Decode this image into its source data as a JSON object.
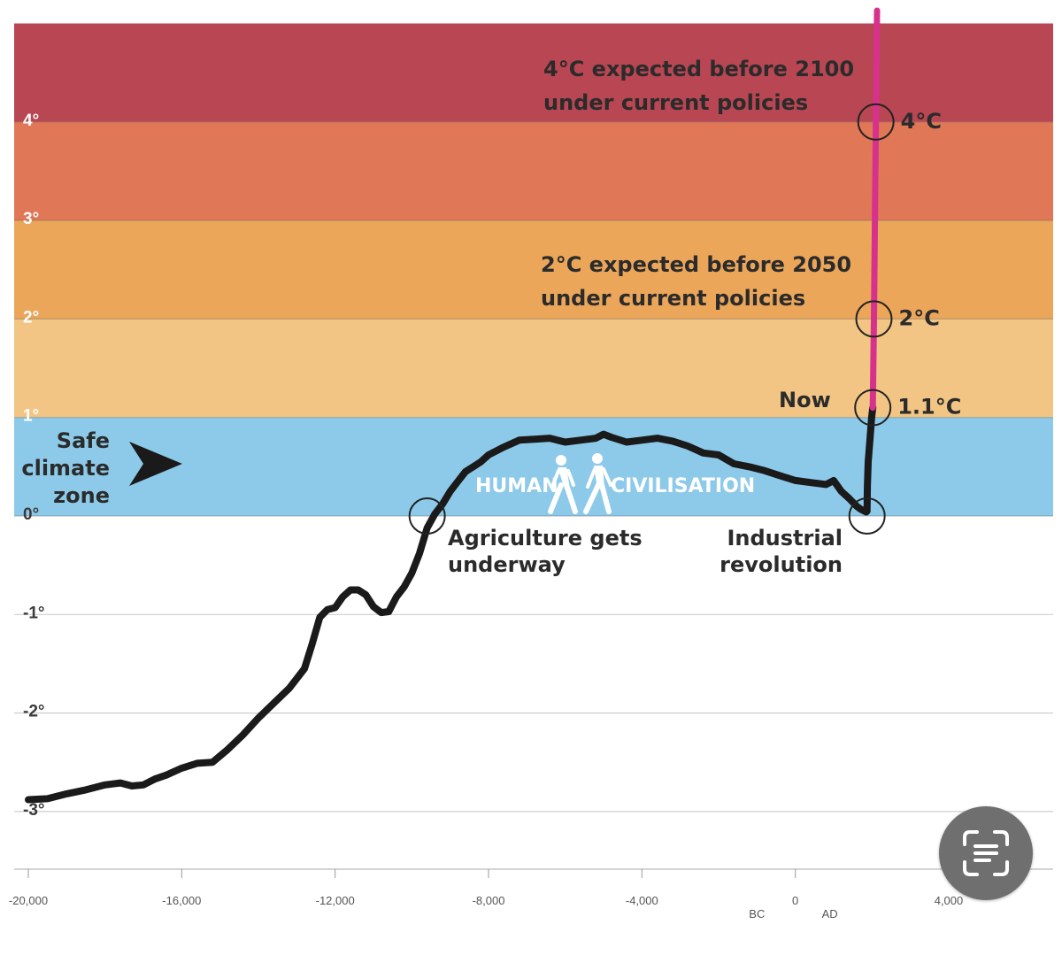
{
  "chart_data": {
    "type": "line",
    "ylim": [
      -3.6,
      5.1
    ],
    "xlim": [
      -20000,
      4500
    ],
    "x_ticks": [
      {
        "value": -20000,
        "label": "-20,000"
      },
      {
        "value": -16000,
        "label": "-16,000"
      },
      {
        "value": -12000,
        "label": "-12,000"
      },
      {
        "value": -8000,
        "label": "-8,000"
      },
      {
        "value": -4000,
        "label": "-4,000"
      },
      {
        "value": 0,
        "label": "0"
      },
      {
        "value": 4000,
        "label": "4,000"
      }
    ],
    "era_labels": [
      {
        "value": -1000,
        "label": "BC"
      },
      {
        "value": 900,
        "label": "AD"
      }
    ],
    "y_ticks": [
      {
        "value": 4,
        "label": "4°"
      },
      {
        "value": 3,
        "label": "3°"
      },
      {
        "value": 2,
        "label": "2°"
      },
      {
        "value": 1,
        "label": "1°"
      },
      {
        "value": 0,
        "label": "0°"
      },
      {
        "value": -1,
        "label": "-1°"
      },
      {
        "value": -2,
        "label": "-2°"
      },
      {
        "value": -3,
        "label": "-3°"
      }
    ],
    "bands": [
      {
        "from": 4,
        "to": 5,
        "color": "#b94653"
      },
      {
        "from": 3,
        "to": 4,
        "color": "#e07757"
      },
      {
        "from": 2,
        "to": 3,
        "color": "#eba65a"
      },
      {
        "from": 1,
        "to": 2,
        "color": "#f2c584"
      },
      {
        "from": 0,
        "to": 1,
        "color": "#8dcaea"
      }
    ],
    "series": [
      {
        "color": "#1a1a1a",
        "x": [
          -20000,
          -19500,
          -19000,
          -18500,
          -18000,
          -17600,
          -17300,
          -17000,
          -16700,
          -16400,
          -16000,
          -15600,
          -15200,
          -14800,
          -14400,
          -14000,
          -13600,
          -13200,
          -12800,
          -12600,
          -12400,
          -12200,
          -12000,
          -11800,
          -11600,
          -11400,
          -11200,
          -11000,
          -10800,
          -10600,
          -10400,
          -10200,
          -10000,
          -9800,
          -9600,
          -9400,
          -9200,
          -9000,
          -8800,
          -8600,
          -8400,
          -8200,
          -8000,
          -7600,
          -7200,
          -6800,
          -6400,
          -6000,
          -5600,
          -5200,
          -5000,
          -4800,
          -4400,
          -4000,
          -3600,
          -3200,
          -2800,
          -2400,
          -2000,
          -1600,
          -1200,
          -800,
          -400,
          0,
          400,
          800,
          1000,
          1200,
          1400,
          1600,
          1700,
          1750,
          1800,
          1850,
          1870
        ],
        "y": [
          -2.88,
          -2.87,
          -2.82,
          -2.78,
          -2.73,
          -2.71,
          -2.74,
          -2.73,
          -2.67,
          -2.63,
          -2.56,
          -2.51,
          -2.5,
          -2.37,
          -2.22,
          -2.05,
          -1.9,
          -1.75,
          -1.55,
          -1.3,
          -1.03,
          -0.95,
          -0.93,
          -0.82,
          -0.75,
          -0.75,
          -0.8,
          -0.92,
          -0.98,
          -0.97,
          -0.82,
          -0.72,
          -0.58,
          -0.38,
          -0.12,
          0.02,
          0.12,
          0.25,
          0.35,
          0.45,
          0.5,
          0.55,
          0.62,
          0.7,
          0.77,
          0.78,
          0.79,
          0.75,
          0.77,
          0.79,
          0.83,
          0.8,
          0.75,
          0.77,
          0.79,
          0.76,
          0.71,
          0.64,
          0.62,
          0.53,
          0.5,
          0.46,
          0.41,
          0.36,
          0.34,
          0.32,
          0.36,
          0.25,
          0.18,
          0.1,
          0.07,
          0.06,
          0.05,
          0.04,
          0.05
        ]
      },
      {
        "color": "#1a1a1a",
        "x": [
          1870,
          1880,
          1900,
          1950,
          1990,
          2020
        ],
        "y": [
          0.05,
          0.3,
          0.55,
          0.8,
          1.0,
          1.1
        ]
      },
      {
        "color": "#d6328c",
        "x": [
          2020,
          2050,
          2100,
          2130
        ],
        "y": [
          1.1,
          2.0,
          4.0,
          5.2
        ]
      }
    ],
    "markers": [
      {
        "x": -9600,
        "y": 0.0,
        "label": ""
      },
      {
        "x": 1870,
        "y": 0.0,
        "label": ""
      },
      {
        "x": 2020,
        "y": 1.1,
        "label": "1.1°C"
      },
      {
        "x": 2050,
        "y": 2.0,
        "label": "2°C"
      },
      {
        "x": 2100,
        "y": 4.0,
        "label": "4°C"
      }
    ],
    "annotations": {
      "four_deg_line1": "4°C expected before 2100",
      "four_deg_line2": "under current policies",
      "two_deg_line1": "2°C expected before 2050",
      "two_deg_line2": "under current policies",
      "now": "Now",
      "safe_line1": "Safe",
      "safe_line2": "climate",
      "safe_line3": "zone",
      "human": "HUMAN",
      "civilisation": "CIVILISATION",
      "agri_line1": "Agriculture gets",
      "agri_line2": "underway",
      "industrial_line1": "Industrial",
      "industrial_line2": "revolution"
    }
  },
  "overlay": {
    "scan_icon": "text-scan-icon",
    "button_color": "#6f6f6f"
  }
}
